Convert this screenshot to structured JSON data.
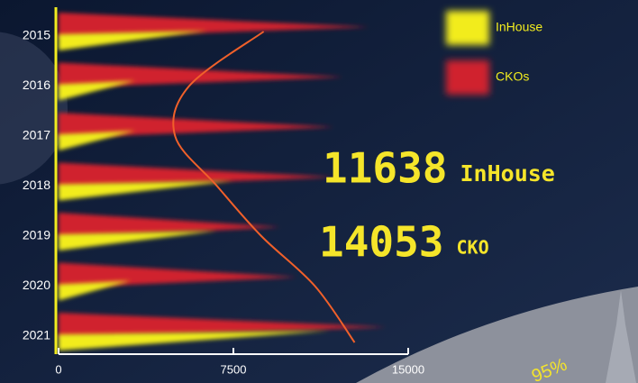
{
  "chart_data": {
    "type": "bar",
    "orientation": "horizontal",
    "categories": [
      "2015",
      "2016",
      "2017",
      "2018",
      "2019",
      "2020",
      "2021"
    ],
    "series": [
      {
        "name": "InHouse",
        "color": "#f2ec1f",
        "values": [
          6400,
          3300,
          3300,
          7500,
          6800,
          3100,
          11638
        ]
      },
      {
        "name": "CKOs",
        "color": "#d0202e",
        "values": [
          13300,
          12200,
          11800,
          11800,
          9500,
          10200,
          14053
        ]
      }
    ],
    "trend": {
      "color": "#f0602a",
      "values": [
        8800,
        5600,
        5000,
        6800,
        8700,
        11000,
        12700
      ]
    },
    "xlim": [
      0,
      15000
    ],
    "xticks": [
      0,
      7500,
      15000
    ],
    "highlights": [
      {
        "series": 0,
        "index": 6,
        "label": "InHouse"
      },
      {
        "series": 1,
        "index": 6,
        "label": "CKO"
      }
    ],
    "gauge": {
      "value": 95,
      "label": "95%"
    }
  }
}
